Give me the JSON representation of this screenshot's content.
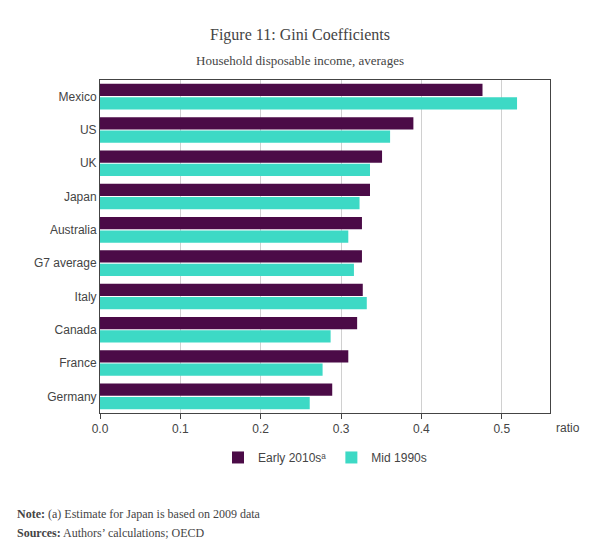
{
  "chart_data": {
    "type": "bar",
    "orientation": "horizontal",
    "title": "Figure 11: Gini Coefficients",
    "subtitle": "Household disposable income, averages",
    "xlabel": "ratio",
    "categories": [
      "Mexico",
      "US",
      "UK",
      "Japan",
      "Australia",
      "G7 average",
      "Italy",
      "Canada",
      "France",
      "Germany"
    ],
    "series": [
      {
        "name": "Early 2010sᵃ",
        "color": "#4B0B47",
        "values": [
          0.476,
          0.39,
          0.351,
          0.336,
          0.326,
          0.326,
          0.327,
          0.32,
          0.309,
          0.289
        ]
      },
      {
        "name": "Mid 1990s",
        "color": "#3DD9C5",
        "values": [
          0.519,
          0.361,
          0.336,
          0.323,
          0.309,
          0.316,
          0.332,
          0.287,
          0.277,
          0.261
        ]
      }
    ],
    "xlim": [
      0.0,
      0.56
    ],
    "xticks": [
      {
        "value": 0.0,
        "label": "0.0"
      },
      0.1,
      0.2,
      0.3,
      0.4,
      0.5
    ],
    "grid": true,
    "legend": "bottom",
    "annotations": [
      "Note:",
      "(a) Estimate for Japan is based on 2009 data",
      "Sources:",
      "Authors’ calculations; OECD"
    ]
  }
}
